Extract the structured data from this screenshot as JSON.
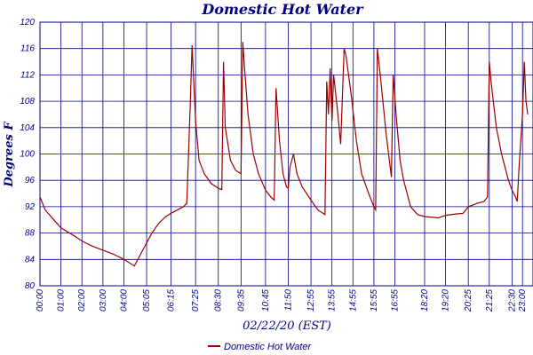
{
  "chart_data": {
    "type": "line",
    "title": "Domestic Hot Water",
    "xlabel": "02/22/20 (EST)",
    "ylabel": "Degrees F",
    "ylim": [
      80,
      120
    ],
    "yticks": [
      80,
      84,
      88,
      92,
      96,
      100,
      104,
      108,
      112,
      116,
      120
    ],
    "xlim": [
      "00:00",
      "23:30"
    ],
    "xticks": [
      "00:00",
      "01:00",
      "02:00",
      "03:00",
      "04:00",
      "05:05",
      "06:15",
      "07:25",
      "08:30",
      "09:35",
      "10:45",
      "11:50",
      "12:55",
      "13:55",
      "14:55",
      "15:55",
      "16:55",
      "18:20",
      "19:20",
      "20:25",
      "21:25",
      "22:30",
      "23:00"
    ],
    "grid": true,
    "legend_position": "bottom",
    "series": [
      {
        "name": "Domestic Hot Water",
        "color": "#990000",
        "points": [
          [
            "00:00",
            93.5
          ],
          [
            "00:15",
            91.5
          ],
          [
            "00:40",
            90.0
          ],
          [
            "01:00",
            88.8
          ],
          [
            "01:40",
            87.5
          ],
          [
            "02:00",
            86.8
          ],
          [
            "02:30",
            86.0
          ],
          [
            "03:00",
            85.4
          ],
          [
            "03:30",
            84.8
          ],
          [
            "04:00",
            84.0
          ],
          [
            "04:30",
            83.0
          ],
          [
            "04:50",
            85.0
          ],
          [
            "05:05",
            86.5
          ],
          [
            "05:20",
            88.0
          ],
          [
            "05:40",
            89.5
          ],
          [
            "06:00",
            90.5
          ],
          [
            "06:15",
            91.0
          ],
          [
            "06:50",
            92.0
          ],
          [
            "07:00",
            92.5
          ],
          [
            "07:10",
            108.0
          ],
          [
            "07:15",
            116.5
          ],
          [
            "07:18",
            113.0
          ],
          [
            "07:25",
            105.0
          ],
          [
            "07:35",
            99.0
          ],
          [
            "07:50",
            97.0
          ],
          [
            "08:10",
            95.5
          ],
          [
            "08:30",
            94.8
          ],
          [
            "08:40",
            94.6
          ],
          [
            "08:45",
            114.0
          ],
          [
            "08:50",
            104.0
          ],
          [
            "09:05",
            99.0
          ],
          [
            "09:20",
            97.5
          ],
          [
            "09:35",
            97.0
          ],
          [
            "09:40",
            117.0
          ],
          [
            "09:45",
            113.0
          ],
          [
            "09:55",
            106.0
          ],
          [
            "10:10",
            100.0
          ],
          [
            "10:25",
            97.0
          ],
          [
            "10:45",
            94.5
          ],
          [
            "11:00",
            93.5
          ],
          [
            "11:10",
            93.0
          ],
          [
            "11:15",
            110.0
          ],
          [
            "11:25",
            102.0
          ],
          [
            "11:35",
            97.0
          ],
          [
            "11:45",
            95.0
          ],
          [
            "11:50",
            94.8
          ],
          [
            "11:55",
            98.0
          ],
          [
            "12:05",
            100.0
          ],
          [
            "12:15",
            97.0
          ],
          [
            "12:30",
            95.0
          ],
          [
            "12:55",
            93.0
          ],
          [
            "13:15",
            91.5
          ],
          [
            "13:35",
            90.8
          ],
          [
            "13:40",
            111.0
          ],
          [
            "13:45",
            106.0
          ],
          [
            "13:50",
            113.0
          ],
          [
            "13:55",
            105.0
          ],
          [
            "14:00",
            112.0
          ],
          [
            "14:10",
            107.0
          ],
          [
            "14:20",
            101.5
          ],
          [
            "14:30",
            116.0
          ],
          [
            "14:35",
            115.0
          ],
          [
            "14:50",
            109.0
          ],
          [
            "15:05",
            102.0
          ],
          [
            "15:20",
            97.0
          ],
          [
            "15:40",
            94.0
          ],
          [
            "15:55",
            92.0
          ],
          [
            "16:00",
            91.5
          ],
          [
            "16:05",
            116.0
          ],
          [
            "16:15",
            111.0
          ],
          [
            "16:30",
            103.0
          ],
          [
            "16:45",
            96.5
          ],
          [
            "16:50",
            112.0
          ],
          [
            "17:00",
            105.0
          ],
          [
            "17:10",
            99.0
          ],
          [
            "17:20",
            96.0
          ],
          [
            "17:40",
            92.0
          ],
          [
            "18:00",
            90.8
          ],
          [
            "18:20",
            90.5
          ],
          [
            "19:00",
            90.3
          ],
          [
            "19:20",
            90.7
          ],
          [
            "19:50",
            90.9
          ],
          [
            "20:10",
            91.0
          ],
          [
            "20:25",
            92.0
          ],
          [
            "20:50",
            92.5
          ],
          [
            "21:10",
            92.8
          ],
          [
            "21:20",
            93.5
          ],
          [
            "21:25",
            114.0
          ],
          [
            "21:30",
            111.0
          ],
          [
            "21:45",
            104.0
          ],
          [
            "22:00",
            100.0
          ],
          [
            "22:10",
            98.0
          ],
          [
            "22:20",
            96.0
          ],
          [
            "22:30",
            94.5
          ],
          [
            "22:40",
            93.5
          ],
          [
            "22:45",
            92.8
          ],
          [
            "22:50",
            98.0
          ],
          [
            "23:00",
            106.0
          ],
          [
            "23:05",
            114.0
          ],
          [
            "23:10",
            108.0
          ],
          [
            "23:15",
            106.0
          ]
        ]
      }
    ]
  }
}
